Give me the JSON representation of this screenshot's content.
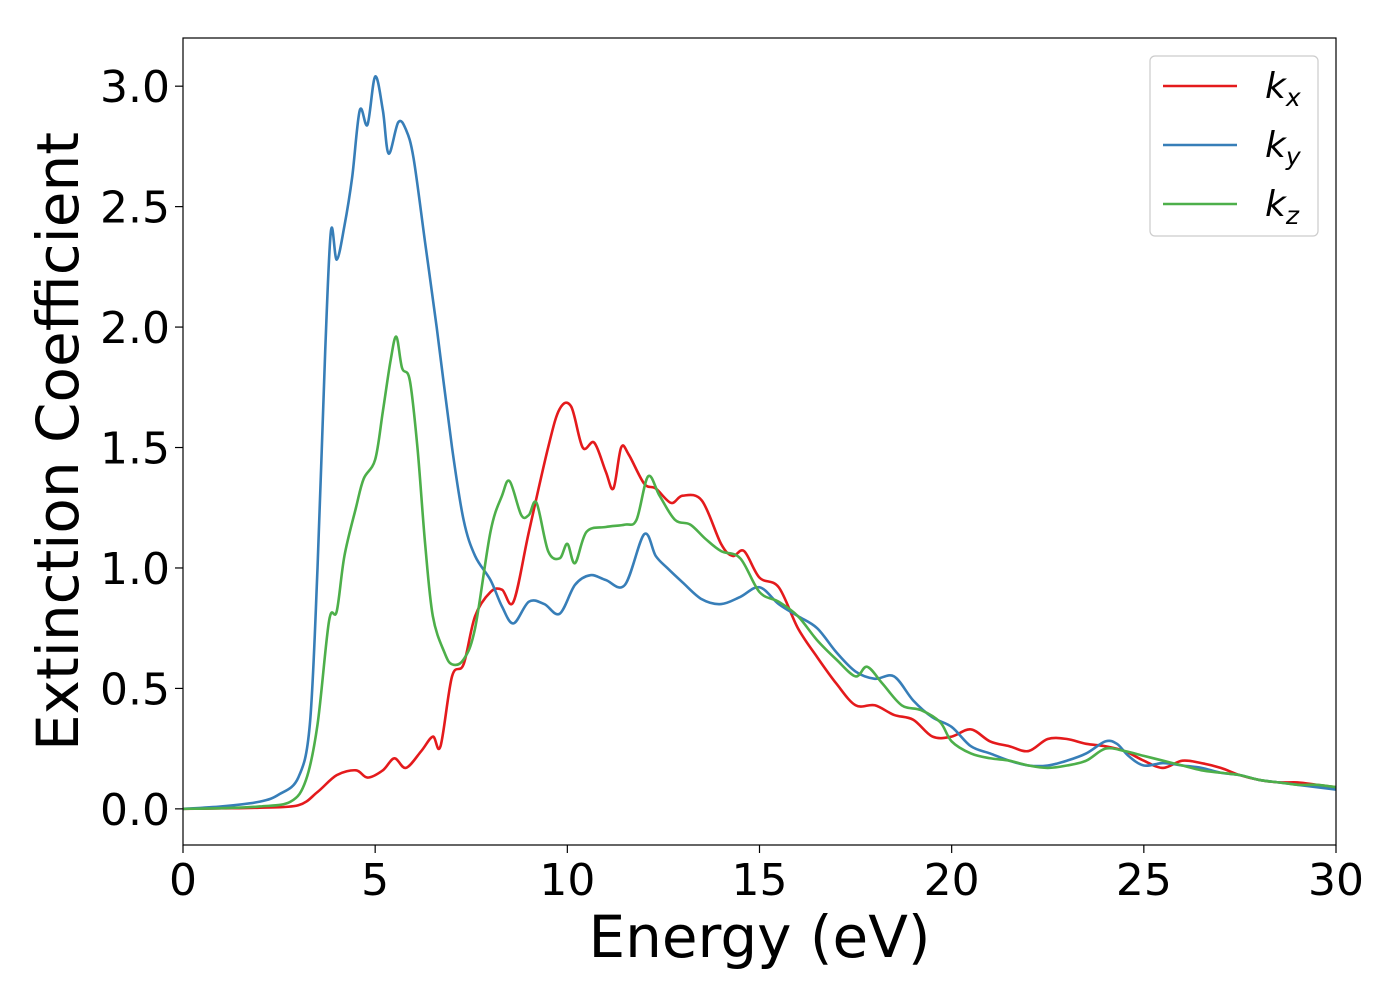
{
  "chart_data": {
    "type": "line",
    "xlabel": "Energy (eV)",
    "ylabel": "Extinction Coefficient",
    "xlim": [
      0,
      30
    ],
    "ylim": [
      -0.15,
      3.2
    ],
    "xticks": [
      0,
      5,
      10,
      15,
      20,
      25,
      30
    ],
    "xtick_labels": [
      "0",
      "5",
      "10",
      "15",
      "20",
      "25",
      "30"
    ],
    "yticks": [
      0.0,
      0.5,
      1.0,
      1.5,
      2.0,
      2.5,
      3.0
    ],
    "ytick_labels": [
      "0.0",
      "0.5",
      "1.0",
      "1.5",
      "2.0",
      "2.5",
      "3.0"
    ],
    "grid": false,
    "legend_position": "top-right",
    "series": [
      {
        "name": "k_x",
        "label_base": "k",
        "label_sub": "x",
        "color": "#e41a1c",
        "points": [
          [
            0,
            0
          ],
          [
            1,
            0.002
          ],
          [
            2,
            0.005
          ],
          [
            3,
            0.015
          ],
          [
            3.5,
            0.07
          ],
          [
            4,
            0.14
          ],
          [
            4.5,
            0.16
          ],
          [
            4.8,
            0.13
          ],
          [
            5.2,
            0.16
          ],
          [
            5.5,
            0.21
          ],
          [
            5.8,
            0.17
          ],
          [
            6.2,
            0.24
          ],
          [
            6.5,
            0.3
          ],
          [
            6.7,
            0.26
          ],
          [
            7.0,
            0.55
          ],
          [
            7.3,
            0.6
          ],
          [
            7.6,
            0.8
          ],
          [
            8.0,
            0.9
          ],
          [
            8.3,
            0.91
          ],
          [
            8.6,
            0.86
          ],
          [
            9.0,
            1.15
          ],
          [
            9.5,
            1.5
          ],
          [
            9.8,
            1.66
          ],
          [
            10.1,
            1.67
          ],
          [
            10.4,
            1.5
          ],
          [
            10.7,
            1.52
          ],
          [
            11.0,
            1.4
          ],
          [
            11.2,
            1.33
          ],
          [
            11.4,
            1.5
          ],
          [
            11.6,
            1.47
          ],
          [
            12.0,
            1.35
          ],
          [
            12.3,
            1.33
          ],
          [
            12.7,
            1.27
          ],
          [
            13.0,
            1.3
          ],
          [
            13.5,
            1.28
          ],
          [
            14.0,
            1.1
          ],
          [
            14.3,
            1.05
          ],
          [
            14.6,
            1.07
          ],
          [
            15.0,
            0.96
          ],
          [
            15.5,
            0.92
          ],
          [
            16.0,
            0.75
          ],
          [
            16.5,
            0.63
          ],
          [
            17.0,
            0.52
          ],
          [
            17.5,
            0.43
          ],
          [
            18.0,
            0.43
          ],
          [
            18.5,
            0.39
          ],
          [
            19.0,
            0.37
          ],
          [
            19.5,
            0.3
          ],
          [
            20.0,
            0.3
          ],
          [
            20.5,
            0.33
          ],
          [
            21.0,
            0.28
          ],
          [
            21.5,
            0.26
          ],
          [
            22.0,
            0.24
          ],
          [
            22.5,
            0.29
          ],
          [
            23.0,
            0.29
          ],
          [
            23.5,
            0.27
          ],
          [
            24.0,
            0.26
          ],
          [
            24.5,
            0.24
          ],
          [
            25.0,
            0.2
          ],
          [
            25.5,
            0.17
          ],
          [
            26.0,
            0.2
          ],
          [
            26.5,
            0.19
          ],
          [
            27.0,
            0.17
          ],
          [
            27.5,
            0.14
          ],
          [
            28.0,
            0.12
          ],
          [
            28.5,
            0.11
          ],
          [
            29.0,
            0.11
          ],
          [
            29.5,
            0.1
          ],
          [
            30.0,
            0.09
          ]
        ]
      },
      {
        "name": "k_y",
        "label_base": "k",
        "label_sub": "y",
        "color": "#377eb8",
        "points": [
          [
            0,
            0
          ],
          [
            1,
            0.01
          ],
          [
            2,
            0.03
          ],
          [
            2.5,
            0.06
          ],
          [
            3.0,
            0.13
          ],
          [
            3.3,
            0.35
          ],
          [
            3.5,
            1.0
          ],
          [
            3.7,
            1.9
          ],
          [
            3.85,
            2.4
          ],
          [
            4.0,
            2.28
          ],
          [
            4.2,
            2.42
          ],
          [
            4.4,
            2.62
          ],
          [
            4.6,
            2.9
          ],
          [
            4.8,
            2.84
          ],
          [
            5.0,
            3.04
          ],
          [
            5.2,
            2.9
          ],
          [
            5.35,
            2.72
          ],
          [
            5.6,
            2.85
          ],
          [
            5.8,
            2.82
          ],
          [
            6.0,
            2.7
          ],
          [
            6.3,
            2.35
          ],
          [
            6.6,
            2.0
          ],
          [
            7.0,
            1.5
          ],
          [
            7.3,
            1.2
          ],
          [
            7.6,
            1.05
          ],
          [
            8.0,
            0.95
          ],
          [
            8.3,
            0.84
          ],
          [
            8.6,
            0.77
          ],
          [
            9.0,
            0.86
          ],
          [
            9.4,
            0.85
          ],
          [
            9.8,
            0.81
          ],
          [
            10.2,
            0.93
          ],
          [
            10.6,
            0.97
          ],
          [
            11.0,
            0.95
          ],
          [
            11.5,
            0.93
          ],
          [
            12.0,
            1.14
          ],
          [
            12.3,
            1.05
          ],
          [
            12.6,
            1.0
          ],
          [
            13.0,
            0.94
          ],
          [
            13.5,
            0.87
          ],
          [
            14.0,
            0.85
          ],
          [
            14.5,
            0.88
          ],
          [
            15.0,
            0.92
          ],
          [
            15.5,
            0.85
          ],
          [
            16.0,
            0.8
          ],
          [
            16.5,
            0.75
          ],
          [
            17.0,
            0.65
          ],
          [
            17.5,
            0.57
          ],
          [
            18.0,
            0.54
          ],
          [
            18.5,
            0.55
          ],
          [
            19.0,
            0.45
          ],
          [
            19.5,
            0.38
          ],
          [
            20.0,
            0.34
          ],
          [
            20.5,
            0.26
          ],
          [
            21.0,
            0.23
          ],
          [
            21.5,
            0.2
          ],
          [
            22.0,
            0.18
          ],
          [
            22.5,
            0.18
          ],
          [
            23.0,
            0.2
          ],
          [
            23.5,
            0.23
          ],
          [
            24.0,
            0.28
          ],
          [
            24.3,
            0.27
          ],
          [
            24.6,
            0.22
          ],
          [
            25.0,
            0.18
          ],
          [
            25.5,
            0.19
          ],
          [
            26.0,
            0.18
          ],
          [
            26.5,
            0.17
          ],
          [
            27.0,
            0.15
          ],
          [
            27.5,
            0.14
          ],
          [
            28.0,
            0.12
          ],
          [
            28.5,
            0.11
          ],
          [
            29.0,
            0.1
          ],
          [
            29.5,
            0.09
          ],
          [
            30.0,
            0.08
          ]
        ]
      },
      {
        "name": "k_z",
        "label_base": "k",
        "label_sub": "z",
        "color": "#4daf4a",
        "points": [
          [
            0,
            0
          ],
          [
            1,
            0.003
          ],
          [
            2,
            0.01
          ],
          [
            2.8,
            0.03
          ],
          [
            3.2,
            0.12
          ],
          [
            3.5,
            0.35
          ],
          [
            3.8,
            0.78
          ],
          [
            4.0,
            0.82
          ],
          [
            4.2,
            1.05
          ],
          [
            4.5,
            1.25
          ],
          [
            4.7,
            1.37
          ],
          [
            5.0,
            1.45
          ],
          [
            5.2,
            1.65
          ],
          [
            5.4,
            1.86
          ],
          [
            5.55,
            1.96
          ],
          [
            5.7,
            1.83
          ],
          [
            5.9,
            1.78
          ],
          [
            6.1,
            1.5
          ],
          [
            6.3,
            1.1
          ],
          [
            6.5,
            0.8
          ],
          [
            6.8,
            0.65
          ],
          [
            7.0,
            0.6
          ],
          [
            7.3,
            0.62
          ],
          [
            7.6,
            0.75
          ],
          [
            8.0,
            1.15
          ],
          [
            8.3,
            1.3
          ],
          [
            8.5,
            1.36
          ],
          [
            8.8,
            1.22
          ],
          [
            9.0,
            1.22
          ],
          [
            9.2,
            1.27
          ],
          [
            9.5,
            1.07
          ],
          [
            9.8,
            1.04
          ],
          [
            10.0,
            1.1
          ],
          [
            10.2,
            1.02
          ],
          [
            10.5,
            1.15
          ],
          [
            11.0,
            1.17
          ],
          [
            11.5,
            1.18
          ],
          [
            11.8,
            1.2
          ],
          [
            12.1,
            1.38
          ],
          [
            12.4,
            1.3
          ],
          [
            12.8,
            1.2
          ],
          [
            13.2,
            1.18
          ],
          [
            13.6,
            1.12
          ],
          [
            14.0,
            1.07
          ],
          [
            14.5,
            1.04
          ],
          [
            15.0,
            0.9
          ],
          [
            15.5,
            0.86
          ],
          [
            16.0,
            0.8
          ],
          [
            16.5,
            0.7
          ],
          [
            17.0,
            0.62
          ],
          [
            17.5,
            0.55
          ],
          [
            17.8,
            0.59
          ],
          [
            18.2,
            0.52
          ],
          [
            18.7,
            0.43
          ],
          [
            19.2,
            0.41
          ],
          [
            19.7,
            0.36
          ],
          [
            20.0,
            0.28
          ],
          [
            20.5,
            0.23
          ],
          [
            21.0,
            0.21
          ],
          [
            21.5,
            0.2
          ],
          [
            22.0,
            0.18
          ],
          [
            22.5,
            0.17
          ],
          [
            23.0,
            0.18
          ],
          [
            23.5,
            0.2
          ],
          [
            24.0,
            0.25
          ],
          [
            24.5,
            0.24
          ],
          [
            25.0,
            0.22
          ],
          [
            25.5,
            0.2
          ],
          [
            26.0,
            0.18
          ],
          [
            26.5,
            0.16
          ],
          [
            27.0,
            0.15
          ],
          [
            27.5,
            0.14
          ],
          [
            28.0,
            0.12
          ],
          [
            28.5,
            0.11
          ],
          [
            29.0,
            0.1
          ],
          [
            29.5,
            0.1
          ],
          [
            30.0,
            0.09
          ]
        ]
      }
    ]
  }
}
